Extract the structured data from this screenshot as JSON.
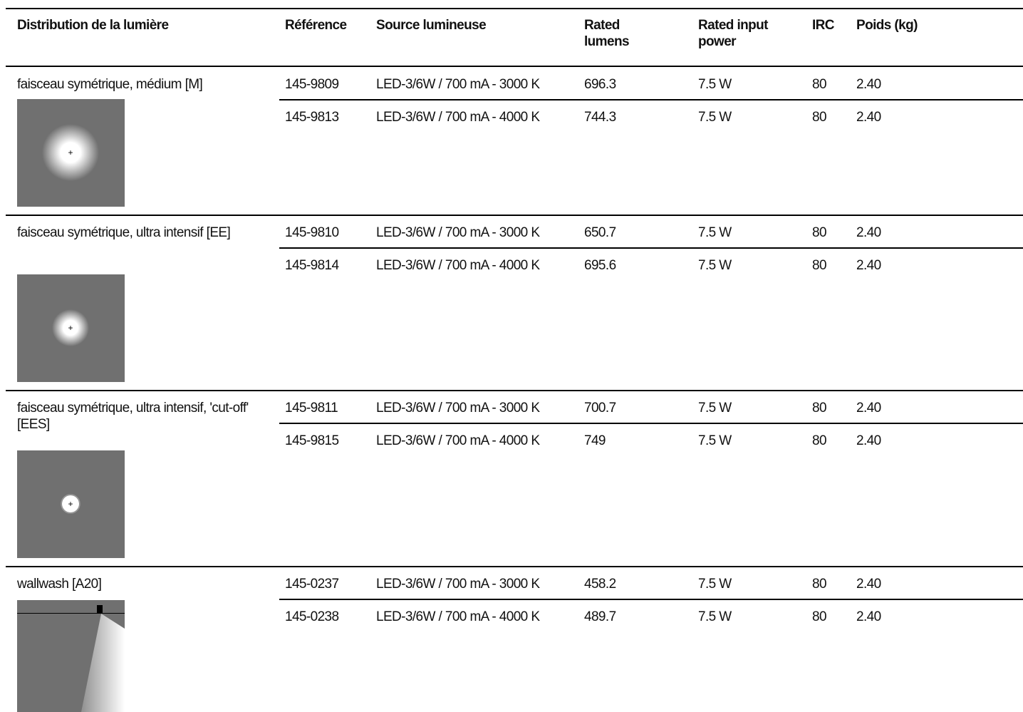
{
  "table": {
    "columns": [
      "Distribution de la lumière",
      "Référence",
      "Source lumineuse",
      "Rated lumens",
      "Rated input power",
      "IRC",
      "Poids (kg)"
    ],
    "groups": [
      {
        "distribution": "faisceau symétrique, médium [M]",
        "rows": [
          [
            "145-9809",
            "LED-3/6W / 700 mA - 3000 K",
            "696.3",
            "7.5 W",
            "80",
            "2.40"
          ],
          [
            "145-9813",
            "LED-3/6W / 700 mA - 4000 K",
            "744.3",
            "7.5 W",
            "80",
            "2.40"
          ]
        ]
      },
      {
        "distribution": "faisceau symétrique, ultra intensif [EE]",
        "rows": [
          [
            "145-9810",
            "LED-3/6W / 700 mA - 3000 K",
            "650.7",
            "7.5 W",
            "80",
            "2.40"
          ],
          [
            "145-9814",
            "LED-3/6W / 700 mA - 4000 K",
            "695.6",
            "7.5 W",
            "80",
            "2.40"
          ]
        ]
      },
      {
        "distribution": "faisceau symétrique, ultra intensif, 'cut-off' [EES]",
        "rows": [
          [
            "145-9811",
            "LED-3/6W / 700 mA - 3000 K",
            "700.7",
            "7.5 W",
            "80",
            "2.40"
          ],
          [
            "145-9815",
            "LED-3/6W / 700 mA - 4000 K",
            "749",
            "7.5 W",
            "80",
            "2.40"
          ]
        ]
      },
      {
        "distribution": "wallwash [A20]",
        "rows": [
          [
            "145-0237",
            "LED-3/6W / 700 mA - 3000 K",
            "458.2",
            "7.5 W",
            "80",
            "2.40"
          ],
          [
            "145-0238",
            "LED-3/6W / 700 mA - 4000 K",
            "489.7",
            "7.5 W",
            "80",
            "2.40"
          ]
        ]
      }
    ]
  }
}
